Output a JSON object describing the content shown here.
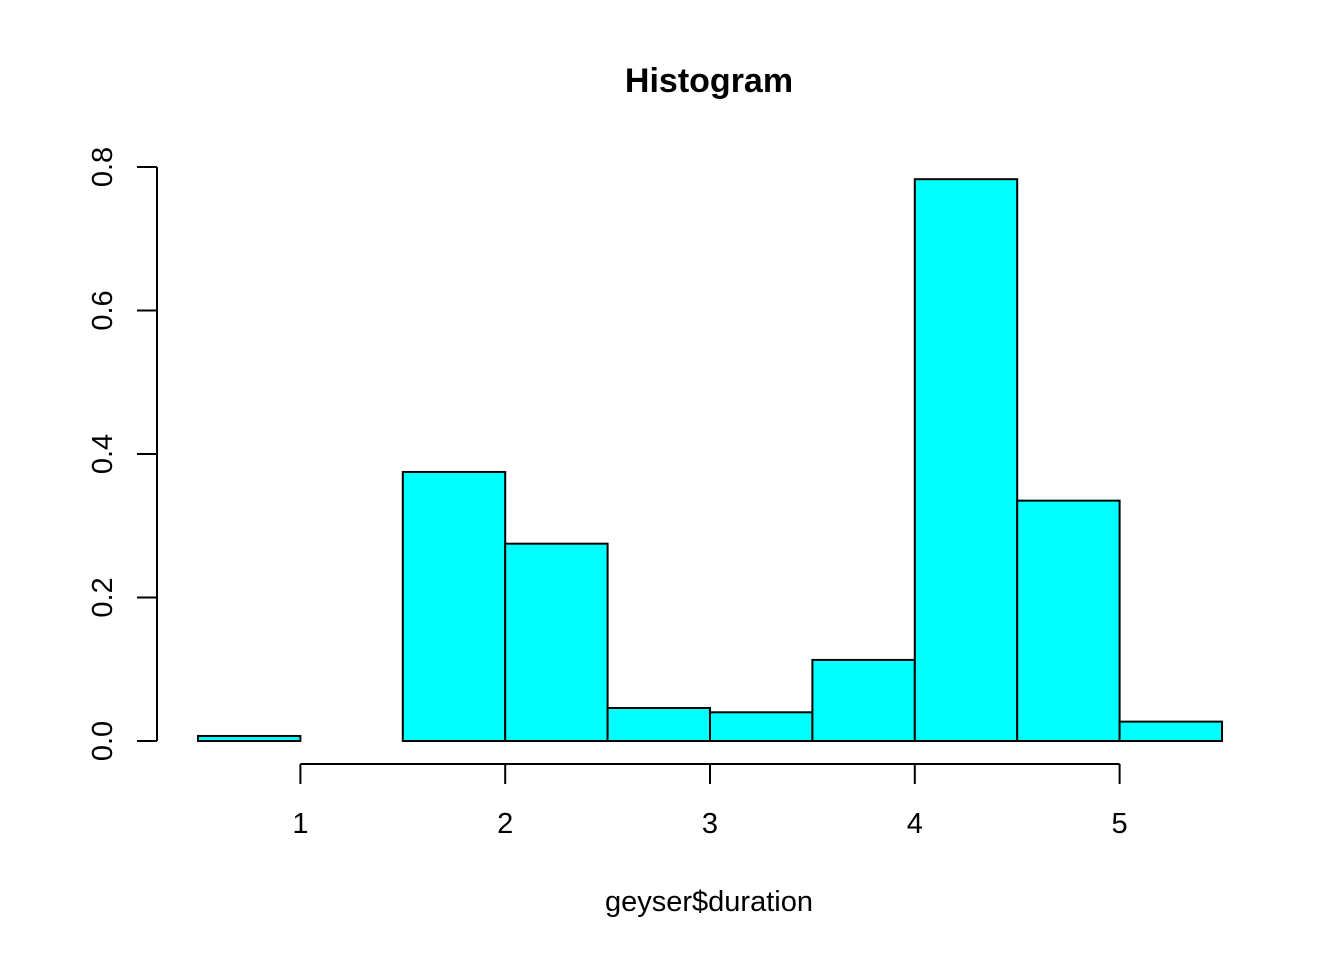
{
  "chart_data": {
    "type": "bar",
    "title": "Histogram",
    "xlabel": "geyser$duration",
    "ylabel": "",
    "bins": [
      {
        "x0": 0.5,
        "x1": 1.0,
        "value": 0.007
      },
      {
        "x0": 1.0,
        "x1": 1.5,
        "value": 0.0
      },
      {
        "x0": 1.5,
        "x1": 2.0,
        "value": 0.375
      },
      {
        "x0": 2.0,
        "x1": 2.5,
        "value": 0.275
      },
      {
        "x0": 2.5,
        "x1": 3.0,
        "value": 0.046
      },
      {
        "x0": 3.0,
        "x1": 3.5,
        "value": 0.04
      },
      {
        "x0": 3.5,
        "x1": 4.0,
        "value": 0.113
      },
      {
        "x0": 4.0,
        "x1": 4.5,
        "value": 0.783
      },
      {
        "x0": 4.5,
        "x1": 5.0,
        "value": 0.335
      },
      {
        "x0": 5.0,
        "x1": 5.5,
        "value": 0.027
      }
    ],
    "xticks": [
      1,
      2,
      3,
      4,
      5
    ],
    "xtick_labels": [
      "1",
      "2",
      "3",
      "4",
      "5"
    ],
    "yticks": [
      0.0,
      0.2,
      0.4,
      0.6,
      0.8
    ],
    "ytick_labels": [
      "0.0",
      "0.2",
      "0.4",
      "0.6",
      "0.8"
    ],
    "xlim": [
      0.5,
      5.5
    ],
    "ylim": [
      0.0,
      0.8
    ],
    "bar_color": "#00FFFF",
    "edge_color": "#000000",
    "grid": false
  }
}
